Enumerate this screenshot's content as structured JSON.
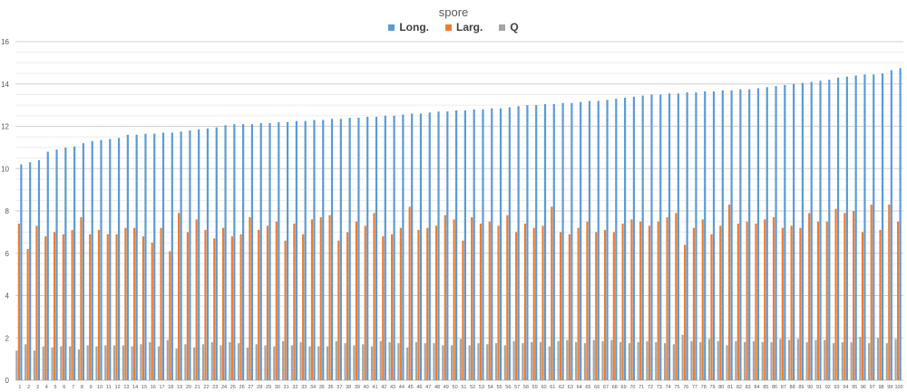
{
  "chart_data": {
    "type": "bar",
    "title": "spore",
    "xlabel": "",
    "ylabel": "",
    "ylim": [
      0,
      16
    ],
    "yticks": [
      0,
      2,
      4,
      6,
      8,
      10,
      12,
      14,
      16
    ],
    "grid": true,
    "legend_position": "top-center",
    "categories": [
      "1",
      "2",
      "3",
      "4",
      "5",
      "6",
      "7",
      "8",
      "9",
      "10",
      "11",
      "12",
      "13",
      "14",
      "15",
      "16",
      "17",
      "18",
      "19",
      "20",
      "21",
      "22",
      "23",
      "24",
      "25",
      "26",
      "27",
      "28",
      "29",
      "30",
      "31",
      "32",
      "33",
      "34",
      "35",
      "36",
      "37",
      "38",
      "39",
      "40",
      "41",
      "42",
      "43",
      "44",
      "45",
      "46",
      "47",
      "48",
      "49",
      "50",
      "51",
      "52",
      "53",
      "54",
      "55",
      "56",
      "57",
      "58",
      "59",
      "60",
      "61",
      "62",
      "63",
      "64",
      "65",
      "66",
      "67",
      "68",
      "69",
      "70",
      "71",
      "72",
      "73",
      "74",
      "75",
      "76",
      "77",
      "78",
      "79",
      "80",
      "81",
      "82",
      "83",
      "84",
      "85",
      "86",
      "87",
      "88",
      "89",
      "90",
      "91",
      "92",
      "93",
      "94",
      "95",
      "96",
      "97",
      "98",
      "99",
      "100"
    ],
    "series": [
      {
        "name": "Long.",
        "color": "#5B9BD5",
        "values": [
          10.2,
          10.3,
          10.4,
          10.8,
          10.9,
          11.0,
          11.05,
          11.2,
          11.3,
          11.35,
          11.4,
          11.45,
          11.6,
          11.6,
          11.65,
          11.65,
          11.7,
          11.7,
          11.75,
          11.8,
          11.85,
          11.9,
          11.95,
          12.05,
          12.1,
          12.1,
          12.1,
          12.15,
          12.15,
          12.2,
          12.2,
          12.25,
          12.25,
          12.3,
          12.3,
          12.35,
          12.35,
          12.4,
          12.4,
          12.45,
          12.45,
          12.5,
          12.5,
          12.55,
          12.6,
          12.6,
          12.65,
          12.7,
          12.7,
          12.75,
          12.75,
          12.8,
          12.8,
          12.85,
          12.85,
          12.9,
          12.95,
          13.0,
          13.0,
          13.05,
          13.05,
          13.1,
          13.1,
          13.15,
          13.2,
          13.2,
          13.25,
          13.3,
          13.35,
          13.4,
          13.45,
          13.5,
          13.5,
          13.55,
          13.55,
          13.6,
          13.6,
          13.65,
          13.65,
          13.7,
          13.7,
          13.75,
          13.75,
          13.8,
          13.85,
          13.9,
          13.95,
          14.0,
          14.05,
          14.1,
          14.15,
          14.2,
          14.3,
          14.35,
          14.4,
          14.45,
          14.45,
          14.5,
          14.65,
          14.75
        ]
      },
      {
        "name": "Larg.",
        "color": "#ED7D31",
        "values": [
          7.4,
          6.2,
          7.3,
          6.8,
          7.0,
          6.9,
          7.1,
          7.7,
          6.9,
          7.1,
          6.9,
          6.9,
          7.2,
          7.2,
          6.8,
          6.5,
          7.2,
          6.1,
          7.9,
          7.0,
          7.6,
          7.1,
          6.7,
          7.2,
          6.8,
          6.9,
          7.7,
          7.1,
          7.3,
          7.5,
          6.6,
          7.4,
          6.9,
          7.6,
          7.7,
          7.8,
          6.6,
          7.0,
          7.5,
          7.3,
          7.9,
          6.8,
          6.9,
          7.2,
          8.2,
          7.1,
          7.2,
          7.3,
          7.8,
          7.6,
          6.6,
          7.7,
          7.4,
          7.5,
          7.3,
          7.8,
          7.0,
          7.4,
          7.2,
          7.3,
          8.2,
          7.0,
          6.9,
          7.2,
          7.5,
          7.0,
          7.1,
          7.0,
          7.4,
          7.6,
          7.5,
          7.3,
          7.5,
          7.7,
          7.9,
          6.4,
          7.2,
          7.6,
          6.9,
          7.3,
          8.3,
          7.4,
          7.5,
          7.4,
          7.6,
          7.7,
          7.2,
          7.3,
          7.2,
          7.9,
          7.5,
          7.5,
          8.1,
          7.9,
          8.0,
          7.0,
          8.3,
          7.1,
          8.3,
          7.5
        ]
      },
      {
        "name": "Q",
        "color": "#A5A5A5",
        "values": [
          1.4,
          1.7,
          1.4,
          1.6,
          1.55,
          1.6,
          1.6,
          1.45,
          1.65,
          1.6,
          1.65,
          1.65,
          1.65,
          1.6,
          1.7,
          1.8,
          1.6,
          1.9,
          1.5,
          1.7,
          1.55,
          1.7,
          1.8,
          1.65,
          1.8,
          1.75,
          1.55,
          1.7,
          1.65,
          1.6,
          1.85,
          1.65,
          1.8,
          1.6,
          1.6,
          1.6,
          1.85,
          1.75,
          1.65,
          1.7,
          1.6,
          1.85,
          1.8,
          1.75,
          1.55,
          1.8,
          1.75,
          1.75,
          1.65,
          1.65,
          1.95,
          1.65,
          1.75,
          1.7,
          1.75,
          1.65,
          1.85,
          1.75,
          1.8,
          1.8,
          1.6,
          1.85,
          1.9,
          1.8,
          1.75,
          1.9,
          1.85,
          1.9,
          1.8,
          1.75,
          1.8,
          1.85,
          1.8,
          1.75,
          1.7,
          2.15,
          1.85,
          1.8,
          1.95,
          1.85,
          1.65,
          1.85,
          1.8,
          1.85,
          1.8,
          1.8,
          1.95,
          1.9,
          1.95,
          1.8,
          1.9,
          1.9,
          1.75,
          1.8,
          1.8,
          2.05,
          1.75,
          2.0,
          1.75,
          1.95
        ]
      }
    ]
  }
}
